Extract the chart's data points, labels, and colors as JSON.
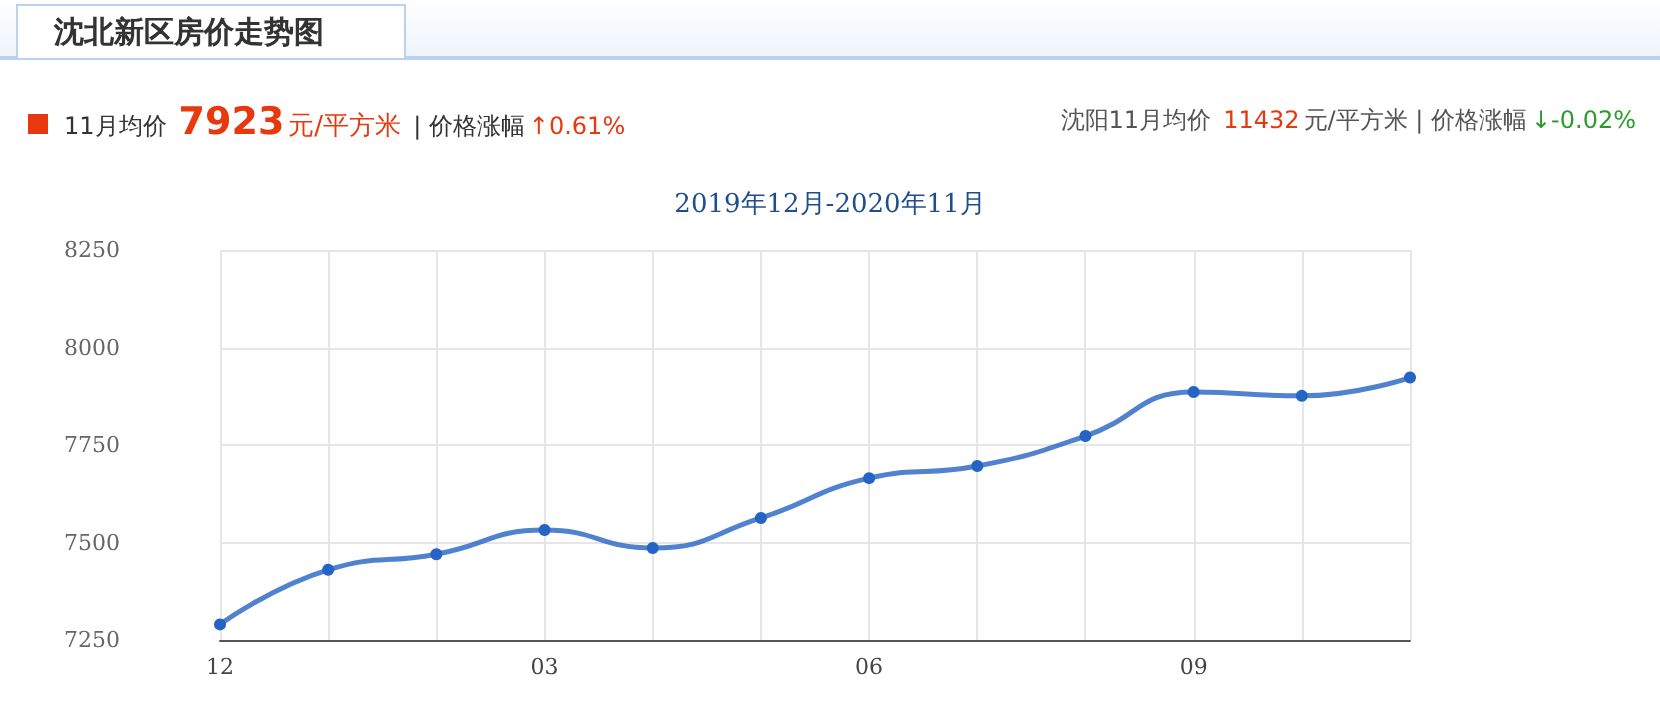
{
  "chart_data": {
    "type": "line",
    "title": "沈北新区房价走势图",
    "subtitle": "2019年12月-2020年11月",
    "annotations": [
      "11月均价",
      "7923",
      "元/平方米",
      "| 价格涨幅",
      "↑0.61%",
      "沈阳11月均价",
      "11432",
      "元/平方米 | 价格涨幅",
      "↓-0.02%"
    ],
    "categories": [
      "12",
      null,
      null,
      "03",
      null,
      null,
      "06",
      null,
      null,
      "09",
      null,
      null
    ],
    "series": [
      {
        "color": "#2563c4",
        "values": [
          7290,
          7430,
          7470,
          7532,
          7486,
          7563,
          7665,
          7696,
          7773,
          7886,
          7876,
          7923
        ]
      }
    ],
    "ylim": [
      7250,
      8250
    ],
    "yticks": [
      7250,
      7500,
      7750,
      8000,
      8250
    ],
    "grid": true,
    "marker": "circle",
    "line_style": "solid"
  }
}
